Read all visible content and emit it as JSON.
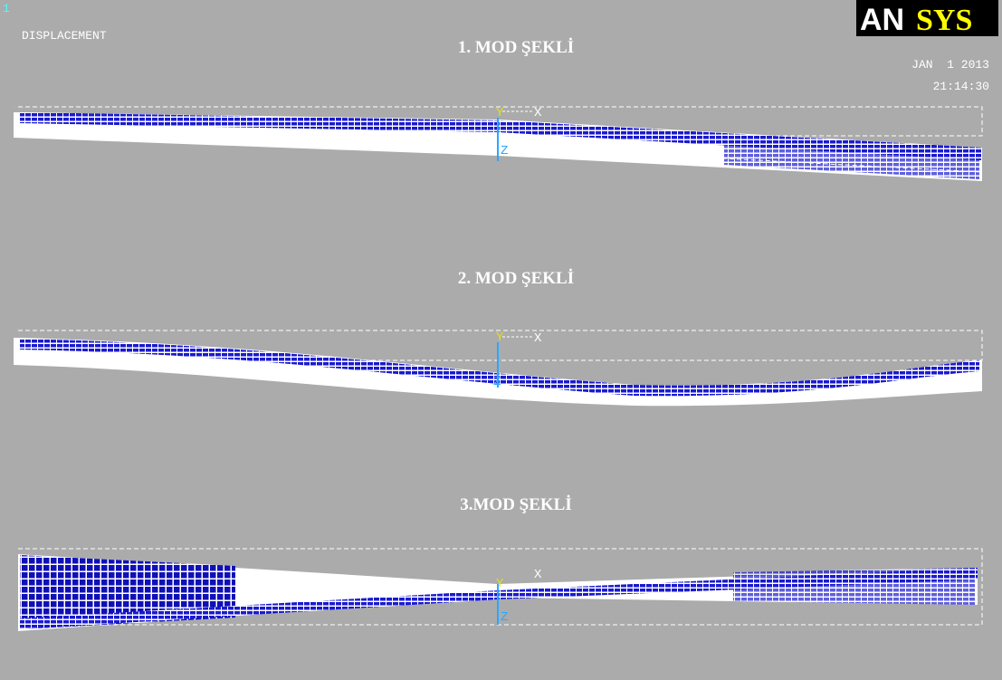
{
  "header": {
    "window_number": "1",
    "label": "DISPLACEMENT",
    "logo": {
      "part1": "AN",
      "part2": "SYS"
    },
    "date": "JAN  1 2013",
    "time": "21:14:30"
  },
  "panels": [
    {
      "title": "1. MOD ŞEKLİ",
      "axes": {
        "y": "Y",
        "x": "X",
        "z": "Z"
      }
    },
    {
      "title": "2. MOD ŞEKLİ",
      "axes": {
        "y": "Y",
        "x": "X",
        "z": "Z"
      }
    },
    {
      "title": "3.MOD ŞEKLİ",
      "axes": {
        "y": "Y",
        "x": "X",
        "z": "Z"
      }
    }
  ]
}
